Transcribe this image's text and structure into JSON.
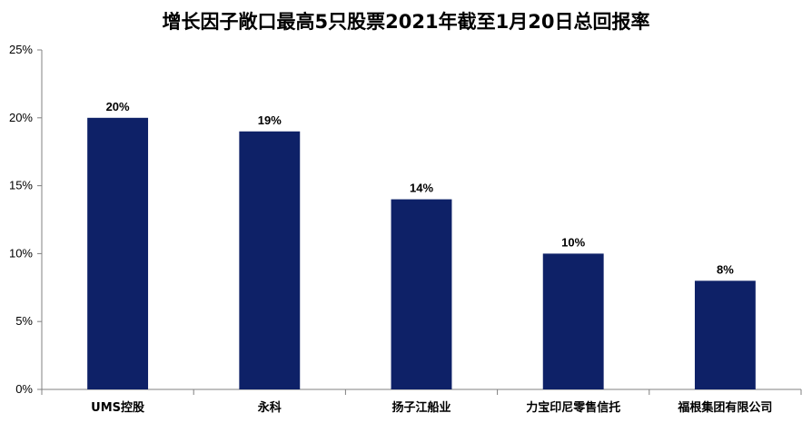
{
  "chart_data": {
    "type": "bar",
    "title": "增长因子敞口最高5只股票2021年截至1月20日总回报率",
    "categories": [
      "UMS控股",
      "永科",
      "扬子江船业",
      "力宝印尼零售信托",
      "福根集团有限公司"
    ],
    "values": [
      20,
      19,
      14,
      10,
      8
    ],
    "value_labels": [
      "20%",
      "19%",
      "14%",
      "10%",
      "8%"
    ],
    "yticks": [
      "0%",
      "5%",
      "10%",
      "15%",
      "20%",
      "25%"
    ],
    "ylim": [
      0,
      25
    ],
    "xlabel": "",
    "ylabel": "",
    "grid": false,
    "legend": "none",
    "bar_color": "#0e2167"
  }
}
